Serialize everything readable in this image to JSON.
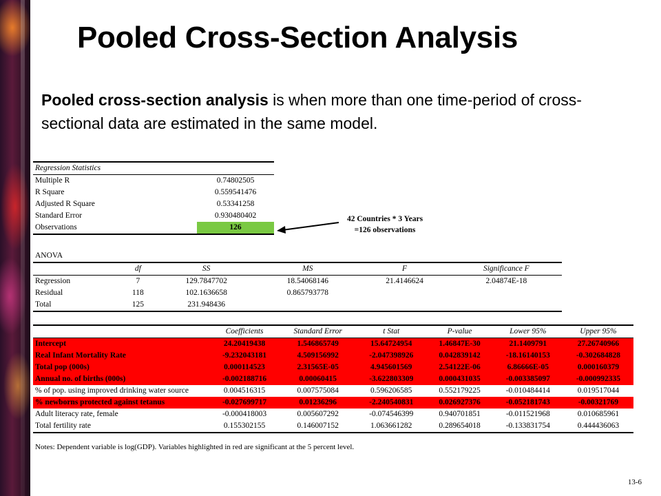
{
  "title": "Pooled Cross-Section Analysis",
  "intro": {
    "bold": "Pooled cross-section analysis",
    "rest": " is when more than one time-period of cross-sectional data are estimated in the same model."
  },
  "regression_statistics": {
    "header": "Regression Statistics",
    "rows": [
      {
        "label": "Multiple R",
        "value": "0.74802505"
      },
      {
        "label": "R Square",
        "value": "0.559541476"
      },
      {
        "label": "Adjusted R Square",
        "value": "0.53341258"
      },
      {
        "label": "Standard Error",
        "value": "0.930480402"
      },
      {
        "label": "Observations",
        "value": "126"
      }
    ]
  },
  "annotation": {
    "line1": "42 Countries * 3 Years",
    "line2": "=126 observations"
  },
  "anova": {
    "label": "ANOVA",
    "headers": [
      "",
      "df",
      "SS",
      "MS",
      "F",
      "Significance F"
    ],
    "rows": [
      [
        "Regression",
        "7",
        "129.7847702",
        "18.54068146",
        "21.4146624",
        "2.04874E-18"
      ],
      [
        "Residual",
        "118",
        "102.1636658",
        "0.865793778",
        "",
        ""
      ],
      [
        "Total",
        "125",
        "231.948436",
        "",
        "",
        ""
      ]
    ]
  },
  "coefficients": {
    "headers": [
      "",
      "Coefficients",
      "Standard Error",
      "t Stat",
      "P-value",
      "Lower 95%",
      "Upper 95%"
    ],
    "rows": [
      {
        "sig": true,
        "cells": [
          "Intercept",
          "24.20419438",
          "1.546865749",
          "15.64724954",
          "1.46847E-30",
          "21.1409791",
          "27.26740966"
        ]
      },
      {
        "sig": true,
        "cells": [
          "Real Infant Mortality Rate",
          "-9.232043181",
          "4.509156992",
          "-2.047398926",
          "0.042839142",
          "-18.16140153",
          "-0.302684828"
        ]
      },
      {
        "sig": true,
        "cells": [
          "Total pop (000s)",
          "0.000114523",
          "2.31565E-05",
          "4.945601569",
          "2.54122E-06",
          "6.86666E-05",
          "0.000160379"
        ]
      },
      {
        "sig": true,
        "cells": [
          "Annual no. of births (000s)",
          "-0.002188716",
          "0.00060415",
          "-3.622803309",
          "0.000431035",
          "-0.003385097",
          "-0.000992335"
        ]
      },
      {
        "sig": false,
        "cells": [
          "% of pop. using improved drinking water source",
          "0.004516315",
          "0.007575084",
          "0.596206585",
          "0.552179225",
          "-0.010484414",
          "0.019517044"
        ]
      },
      {
        "sig": true,
        "cells": [
          "% newborns protected against tetanus",
          "-0.027699717",
          "0.01236296",
          "-2.240540831",
          "0.026927376",
          "-0.052181743",
          "-0.00321769"
        ]
      },
      {
        "sig": false,
        "cells": [
          "Adult literacy rate, female",
          "-0.000418003",
          "0.005607292",
          "-0.074546399",
          "0.940701851",
          "-0.011521968",
          "0.010685961"
        ]
      },
      {
        "sig": false,
        "cells": [
          "Total fertility rate",
          "0.155302155",
          "0.146007152",
          "1.063661282",
          "0.289654018",
          "-0.133831754",
          "0.444436063"
        ]
      }
    ]
  },
  "notes": "Notes: Dependent variable is log(GDP). Variables highlighted in red are significant at the 5 percent level.",
  "slide_number": "13-6"
}
